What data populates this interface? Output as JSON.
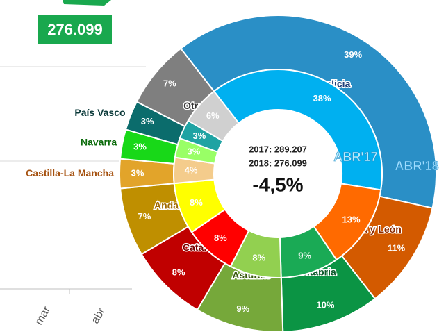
{
  "kpi": {
    "value": "276.099",
    "x_labels": [
      "mar",
      "abr"
    ]
  },
  "chart_data": {
    "type": "donut",
    "categories": [
      "Galicia",
      "Castilla y León",
      "Cantabria",
      "Asturias",
      "Cataluña",
      "Andalucía",
      "Castilla-La Mancha",
      "Navarra",
      "País Vasco",
      "Otros"
    ],
    "series": [
      {
        "name": "ABR'18",
        "values": [
          39,
          11,
          10,
          9,
          8,
          7,
          3,
          3,
          3,
          7
        ],
        "value_labels": [
          "39%",
          "11%",
          "10%",
          "9%",
          "8%",
          "7%",
          "3%",
          "3%",
          "3%",
          "7%"
        ],
        "colors": [
          "#2a8fc6",
          "#d35a00",
          "#0b9444",
          "#76a83a",
          "#c00000",
          "#bf8f00",
          "#e2a42a",
          "#18d818",
          "#0b6c6c",
          "#7f7f7f"
        ]
      },
      {
        "name": "ABR'17",
        "values": [
          38,
          13,
          9,
          8,
          8,
          8,
          4,
          3,
          3,
          6
        ],
        "value_labels": [
          "38%",
          "13%",
          "9%",
          "8%",
          "8%",
          "8%",
          "4%",
          "3%",
          "3%",
          "6%"
        ],
        "colors": [
          "#00b0f0",
          "#ff6a00",
          "#1aaa55",
          "#92d050",
          "#ff0000",
          "#ffff00",
          "#f4cc8c",
          "#99ff66",
          "#1fa3a3",
          "#d0d0d0"
        ]
      }
    ],
    "center_lines": [
      "2017: 289.207",
      "2018: 276.099",
      "-4,5%"
    ],
    "label_colors": [
      "#1f3f7a",
      "#8b2a00",
      "#0b5a2a",
      "#3a5a10",
      "#7a0000",
      "#a06a00",
      "#a5510f",
      "#0a6a0a",
      "#0b3a3a",
      "#333333"
    ]
  }
}
